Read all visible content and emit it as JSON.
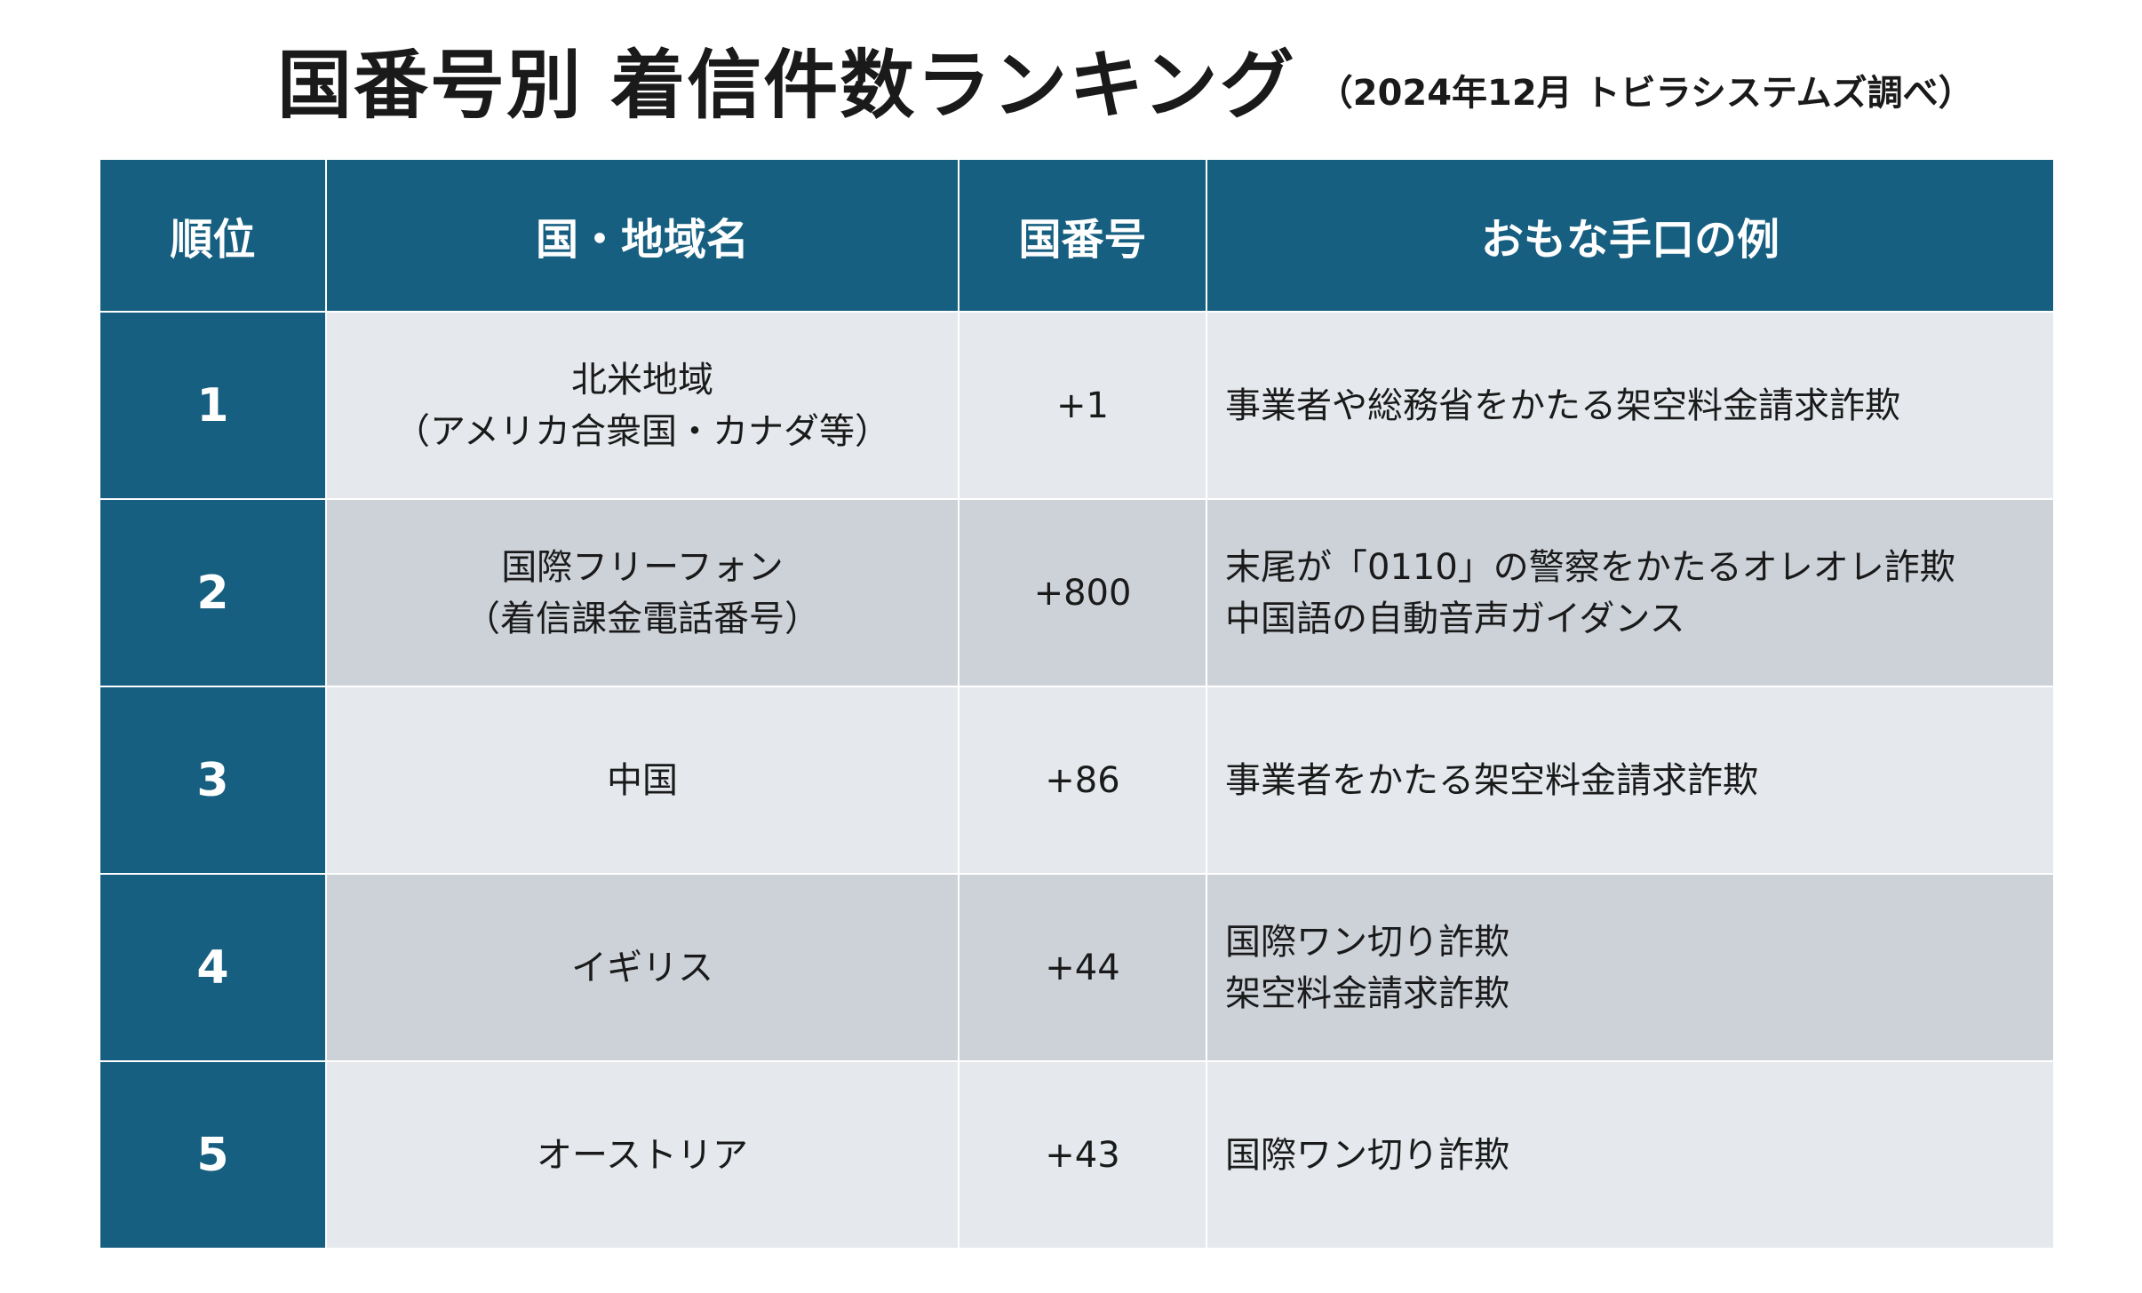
{
  "title": "国番号別 着信件数ランキング",
  "subtitle": "（2024年12月 トビラシステムズ調べ）",
  "colors": {
    "header_bg": "#175f80",
    "row_light": "#e5e9ed",
    "row_dark": "#cdd2d9"
  },
  "table": {
    "headers": [
      "順位",
      "国・地域名",
      "国番号",
      "おもな手口の例"
    ],
    "rows": [
      {
        "rank": "1",
        "country": [
          "北米地域",
          "（アメリカ合衆国・カナダ等）"
        ],
        "code": "+1",
        "methods": [
          "事業者や総務省をかたる架空料金請求詐欺"
        ]
      },
      {
        "rank": "2",
        "country": [
          "国際フリーフォン",
          "（着信課金電話番号）"
        ],
        "code": "+800",
        "methods": [
          "末尾が「0110」の警察をかたるオレオレ詐欺",
          "中国語の自動音声ガイダンス"
        ]
      },
      {
        "rank": "3",
        "country": [
          "中国"
        ],
        "code": "+86",
        "methods": [
          "事業者をかたる架空料金請求詐欺"
        ]
      },
      {
        "rank": "4",
        "country": [
          "イギリス"
        ],
        "code": "+44",
        "methods": [
          "国際ワン切り詐欺",
          "架空料金請求詐欺"
        ]
      },
      {
        "rank": "5",
        "country": [
          "オーストリア"
        ],
        "code": "+43",
        "methods": [
          "国際ワン切り詐欺"
        ]
      }
    ]
  }
}
